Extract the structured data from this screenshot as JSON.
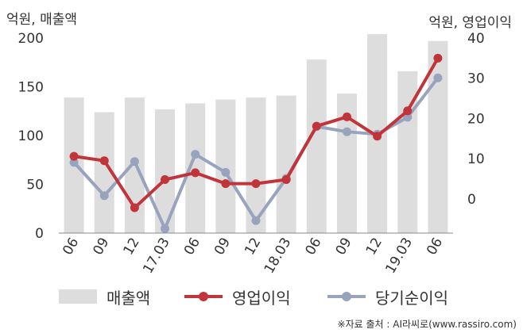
{
  "units": {
    "left": "억원, 매출액",
    "right": "억원, 영업이익"
  },
  "source": "※자료 출처 : AI라씨로(www.rassiro.com)",
  "colors": {
    "revenue": "#dddddd",
    "operating_profit": "#c0343a",
    "net_profit": "#98a3bd",
    "axis": "#444444"
  },
  "chart_data": {
    "type": "bar+line",
    "categories": [
      "06",
      "09",
      "12",
      "17.03",
      "06",
      "09",
      "12",
      "18.03",
      "06",
      "09",
      "12",
      "19.03",
      "06"
    ],
    "left_axis": {
      "ticks": [
        0,
        50,
        100,
        150,
        200
      ],
      "ylim": [
        0,
        200
      ]
    },
    "right_axis": {
      "ticks": [
        0,
        10,
        20,
        30,
        40
      ],
      "ylim": [
        -8.5,
        40
      ]
    },
    "series": [
      {
        "name": "매출액",
        "type": "bar",
        "axis": "left",
        "values": [
          139,
          124,
          139,
          127,
          133,
          137,
          139,
          141,
          178,
          143,
          204,
          166,
          197
        ]
      },
      {
        "name": "영업이익",
        "type": "line",
        "axis": "right",
        "values": [
          10.6,
          9.5,
          -2.2,
          4.8,
          6.5,
          3.8,
          3.8,
          4.8,
          18.1,
          20.4,
          15.6,
          21.9,
          35.0
        ]
      },
      {
        "name": "당기순이익",
        "type": "line",
        "axis": "right",
        "values": [
          9.1,
          0.8,
          9.3,
          -7.4,
          11.1,
          6.6,
          -5.4,
          5.1,
          18.0,
          16.7,
          16.1,
          20.3,
          30.1
        ]
      }
    ],
    "grid": false,
    "legend_position": "bottom"
  }
}
